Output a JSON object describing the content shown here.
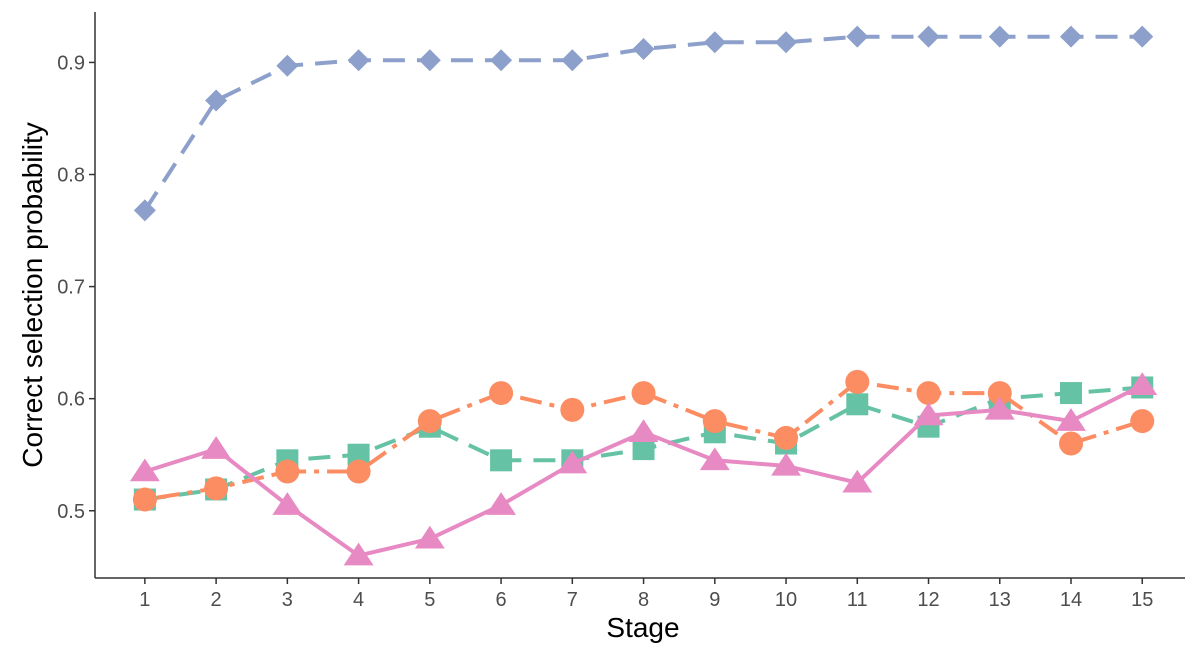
{
  "chart_data": {
    "type": "line",
    "title": "",
    "xlabel": "Stage",
    "ylabel": "Correct selection probability",
    "x": [
      1,
      2,
      3,
      4,
      5,
      6,
      7,
      8,
      9,
      10,
      11,
      12,
      13,
      14,
      15
    ],
    "xlim": [
      0.3,
      15.6
    ],
    "ylim": [
      0.44,
      0.945
    ],
    "yticks": [
      0.5,
      0.6,
      0.7,
      0.8,
      0.9
    ],
    "ytick_labels": [
      "0.5",
      "0.6",
      "0.7",
      "0.8",
      "0.9"
    ],
    "xtick_labels": [
      "1",
      "2",
      "3",
      "4",
      "5",
      "6",
      "7",
      "8",
      "9",
      "10",
      "11",
      "12",
      "13",
      "14",
      "15"
    ],
    "grid": false,
    "legend": "none",
    "series": [
      {
        "color": "#8DA0CB",
        "marker": "diamond",
        "dash": "dashed",
        "values": [
          0.768,
          0.866,
          0.897,
          0.902,
          0.902,
          0.902,
          0.902,
          0.912,
          0.918,
          0.918,
          0.923,
          0.923,
          0.923,
          0.923,
          0.923
        ]
      },
      {
        "color": "#66C2A5",
        "marker": "square",
        "dash": "dashed",
        "values": [
          0.51,
          0.519,
          0.545,
          0.55,
          0.575,
          0.545,
          0.545,
          0.555,
          0.57,
          0.56,
          0.595,
          0.575,
          0.6,
          0.605,
          0.61
        ]
      },
      {
        "color": "#FC8D62",
        "marker": "circle",
        "dash": "dotdash",
        "values": [
          0.51,
          0.52,
          0.535,
          0.535,
          0.58,
          0.605,
          0.59,
          0.605,
          0.58,
          0.565,
          0.615,
          0.605,
          0.605,
          0.56,
          0.58
        ]
      },
      {
        "color": "#E78AC3",
        "marker": "triangle",
        "dash": "solid",
        "values": [
          0.535,
          0.555,
          0.505,
          0.46,
          0.475,
          0.505,
          0.542,
          0.57,
          0.545,
          0.54,
          0.525,
          0.585,
          0.59,
          0.58,
          0.612
        ]
      }
    ]
  }
}
